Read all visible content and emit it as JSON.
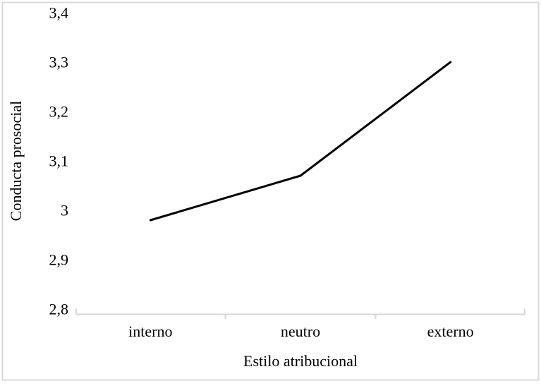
{
  "figure": {
    "background": "#ffffff",
    "border_color": "#d8d8d8"
  },
  "chart_data": {
    "type": "line",
    "title": "",
    "categories": [
      "interno",
      "neutro",
      "externo"
    ],
    "series": [
      {
        "name": "Conducta prosocial",
        "color": "#000000",
        "values": [
          2.98,
          3.07,
          3.3
        ]
      }
    ],
    "xlabel": "Estilo atribucional",
    "ylabel": "Conducta prosocial",
    "ylim": [
      2.8,
      3.4
    ],
    "ytick_step": 0.1,
    "y_ticks": [
      {
        "value": 2.8,
        "label": "2,8"
      },
      {
        "value": 2.9,
        "label": "2,9"
      },
      {
        "value": 3.0,
        "label": "3"
      },
      {
        "value": 3.1,
        "label": "3,1"
      },
      {
        "value": 3.2,
        "label": "3,2"
      },
      {
        "value": 3.3,
        "label": "3,3"
      },
      {
        "value": 3.4,
        "label": "3,4"
      }
    ],
    "decimal_separator": ",",
    "grid": false,
    "legend": "none",
    "markers": "none",
    "axis_color": "#d9d9d9",
    "text_color": "#000000"
  }
}
